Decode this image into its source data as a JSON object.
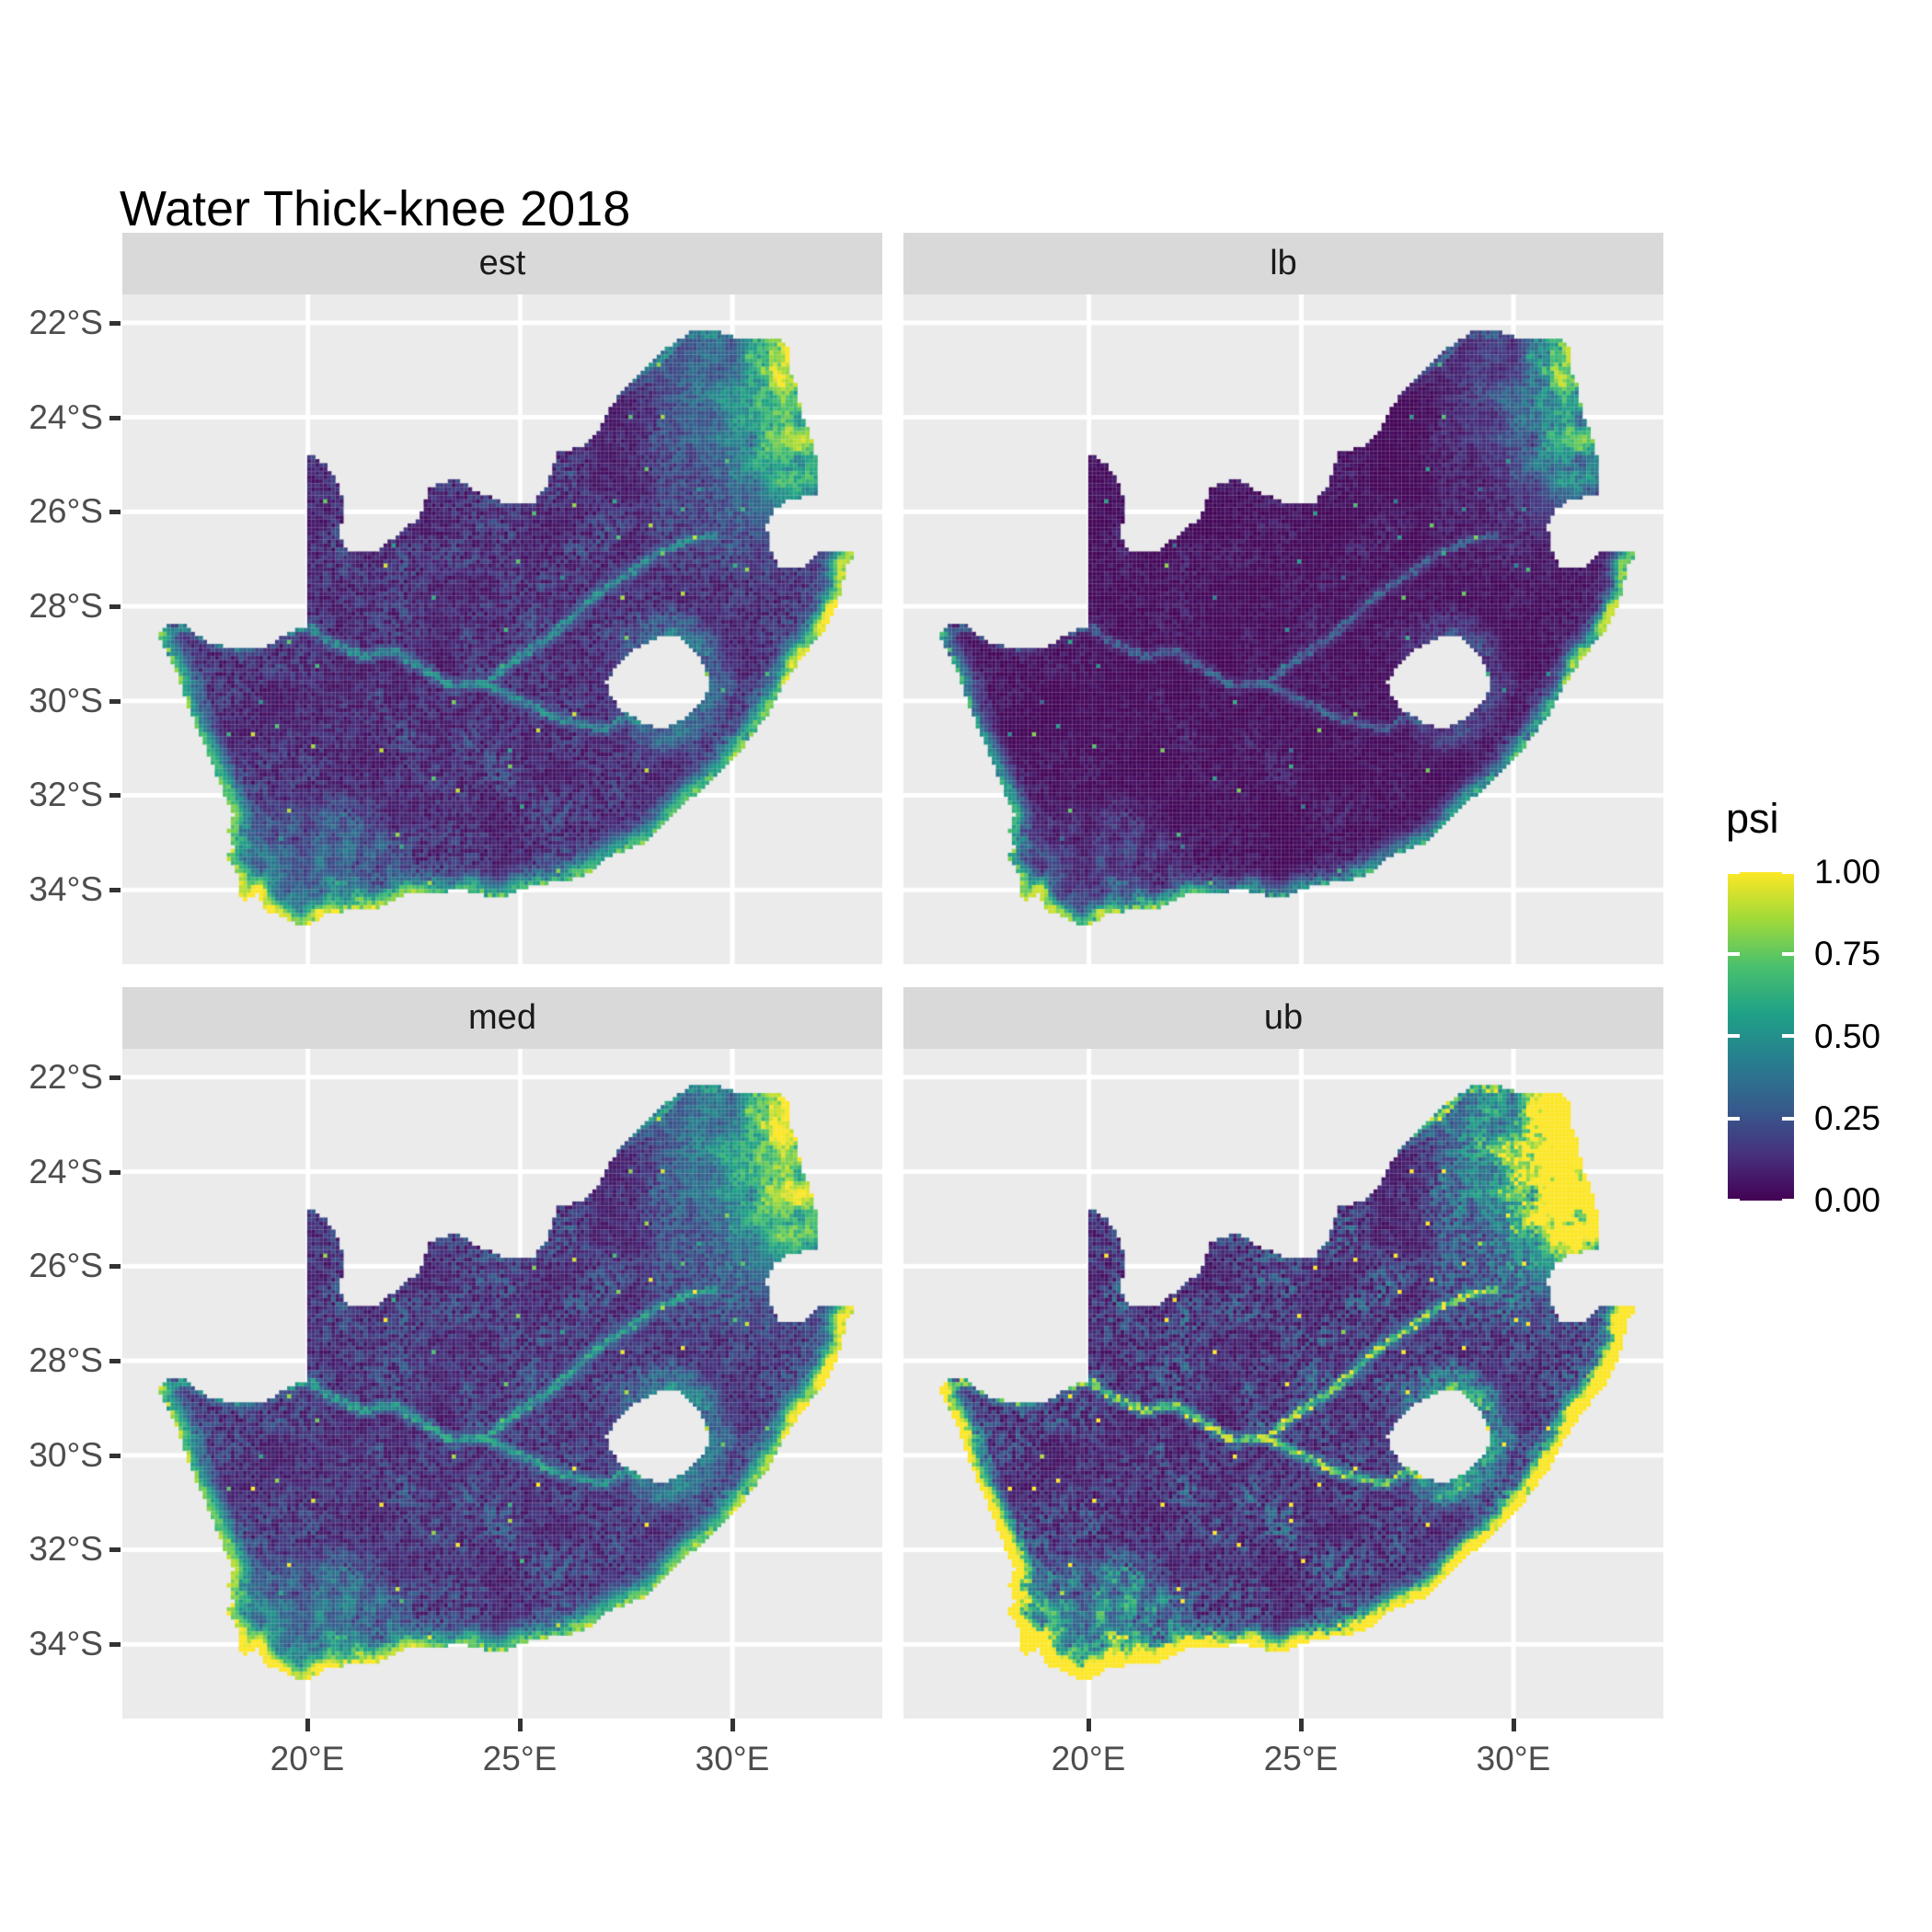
{
  "title": "Water Thick-knee 2018",
  "colors": {
    "background": "#FFFFFF",
    "panel_bg": "#EBEBEB",
    "strip_bg": "#D9D9D9",
    "strip_text": "#1A1A1A",
    "grid": "#FFFFFF",
    "axis_text": "#4D4D4D",
    "tick_mark": "#333333",
    "title_text": "#000000"
  },
  "axes": {
    "x_ticks": [
      "20°E",
      "25°E",
      "30°E"
    ],
    "y_ticks": [
      "22°S",
      "24°S",
      "26°S",
      "28°S",
      "30°S",
      "32°S",
      "34°S"
    ]
  },
  "legend": {
    "title": "psi",
    "tick_labels": [
      "1.00",
      "0.75",
      "0.50",
      "0.25",
      "0.00"
    ]
  },
  "chart_data": {
    "type": "heatmap",
    "subtype": "faceted-raster-occupancy-map",
    "title": "Water Thick-knee 2018",
    "variable": "psi",
    "value_range": [
      0,
      1
    ],
    "region": "South Africa (Lesotho shown as hole, Eswatini notch on east border)",
    "facets": [
      {
        "label": "est",
        "transform": {
          "gain": 1.0,
          "gamma": 1.0,
          "boost": 0
        }
      },
      {
        "label": "lb",
        "transform": {
          "gain": 0.92,
          "gamma": 1.55,
          "boost": 0
        }
      },
      {
        "label": "med",
        "transform": {
          "gain": 1.1,
          "gamma": 0.93,
          "boost": 0
        }
      },
      {
        "label": "ub",
        "transform": {
          "gain": 0.9,
          "gamma": 1.0,
          "boost": 1.5
        }
      }
    ],
    "x_axis": {
      "label": "",
      "ticks_deg_east": [
        20,
        25,
        30
      ],
      "range_deg_east": [
        15.63,
        33.53
      ]
    },
    "y_axis": {
      "label": "",
      "ticks_deg_south": [
        22,
        24,
        26,
        28,
        30,
        32,
        34
      ],
      "range_deg_south": [
        21.4,
        35.57
      ]
    },
    "grid": "major white gridlines on gray panel",
    "legend_position": "right",
    "palette": {
      "name": "viridis",
      "stops": [
        [
          0,
          "#440154"
        ],
        [
          0.143,
          "#46327e"
        ],
        [
          0.286,
          "#365c8d"
        ],
        [
          0.429,
          "#277f8e"
        ],
        [
          0.571,
          "#1fa187"
        ],
        [
          0.714,
          "#4ac16d"
        ],
        [
          0.857,
          "#a0da39"
        ],
        [
          1,
          "#fde725"
        ]
      ]
    },
    "raster_cell_deg": 0.085,
    "coast_band_deg": 0.22,
    "coast_end_index": 41,
    "outline": [
      [
        16.45,
        -28.58
      ],
      [
        16.82,
        -29.2
      ],
      [
        17.05,
        -29.75
      ],
      [
        17.28,
        -30.35
      ],
      [
        17.62,
        -31.05
      ],
      [
        17.95,
        -31.8
      ],
      [
        18.25,
        -32.4
      ],
      [
        18.12,
        -32.78
      ],
      [
        18.27,
        -33.1
      ],
      [
        18.05,
        -33.3
      ],
      [
        18.32,
        -33.6
      ],
      [
        18.36,
        -33.98
      ],
      [
        18.47,
        -34.22
      ],
      [
        18.82,
        -34.08
      ],
      [
        18.97,
        -34.42
      ],
      [
        19.42,
        -34.58
      ],
      [
        19.92,
        -34.78
      ],
      [
        20.4,
        -34.52
      ],
      [
        20.98,
        -34.42
      ],
      [
        21.62,
        -34.42
      ],
      [
        22.28,
        -34.08
      ],
      [
        22.92,
        -34.08
      ],
      [
        23.62,
        -33.98
      ],
      [
        24.52,
        -34.18
      ],
      [
        25.08,
        -33.96
      ],
      [
        25.72,
        -33.85
      ],
      [
        26.48,
        -33.72
      ],
      [
        27.12,
        -33.28
      ],
      [
        27.92,
        -33.0
      ],
      [
        28.62,
        -32.4
      ],
      [
        29.28,
        -31.85
      ],
      [
        29.92,
        -31.3
      ],
      [
        30.42,
        -30.8
      ],
      [
        30.88,
        -30.22
      ],
      [
        31.12,
        -29.78
      ],
      [
        31.48,
        -29.28
      ],
      [
        31.78,
        -28.92
      ],
      [
        32.08,
        -28.6
      ],
      [
        32.38,
        -28.15
      ],
      [
        32.58,
        -27.65
      ],
      [
        32.68,
        -27.15
      ],
      [
        32.89,
        -26.86
      ],
      [
        32.05,
        -26.86
      ],
      [
        31.6,
        -27.22
      ],
      [
        31.1,
        -27.2
      ],
      [
        30.86,
        -26.78
      ],
      [
        30.8,
        -26.28
      ],
      [
        30.97,
        -25.94
      ],
      [
        31.4,
        -25.72
      ],
      [
        31.97,
        -25.66
      ],
      [
        32.02,
        -25.1
      ],
      [
        31.88,
        -24.5
      ],
      [
        31.62,
        -23.92
      ],
      [
        31.52,
        -23.4
      ],
      [
        31.3,
        -22.9
      ],
      [
        31.29,
        -22.4
      ],
      [
        30.8,
        -22.3
      ],
      [
        30.25,
        -22.35
      ],
      [
        29.65,
        -22.18
      ],
      [
        29.02,
        -22.2
      ],
      [
        28.35,
        -22.58
      ],
      [
        27.68,
        -23.22
      ],
      [
        27.2,
        -23.68
      ],
      [
        26.85,
        -24.3
      ],
      [
        26.4,
        -24.64
      ],
      [
        25.88,
        -24.75
      ],
      [
        25.62,
        -25.48
      ],
      [
        25.33,
        -25.78
      ],
      [
        24.68,
        -25.82
      ],
      [
        24.08,
        -25.62
      ],
      [
        23.45,
        -25.28
      ],
      [
        22.86,
        -25.5
      ],
      [
        22.64,
        -26.12
      ],
      [
        22.14,
        -26.45
      ],
      [
        21.6,
        -26.86
      ],
      [
        20.98,
        -26.84
      ],
      [
        20.7,
        -26.48
      ],
      [
        20.86,
        -25.98
      ],
      [
        20.74,
        -25.45
      ],
      [
        20.4,
        -25.0
      ],
      [
        20.0,
        -24.76
      ],
      [
        20.0,
        -28.4
      ],
      [
        19.55,
        -28.55
      ],
      [
        18.95,
        -28.88
      ],
      [
        18.2,
        -28.9
      ],
      [
        17.58,
        -28.74
      ],
      [
        17.06,
        -28.34
      ],
      [
        16.72,
        -28.36
      ]
    ],
    "lesotho_hole": [
      [
        27.02,
        -29.58
      ],
      [
        27.32,
        -29.22
      ],
      [
        27.72,
        -28.9
      ],
      [
        28.22,
        -28.66
      ],
      [
        28.68,
        -28.6
      ],
      [
        29.1,
        -28.92
      ],
      [
        29.36,
        -29.32
      ],
      [
        29.46,
        -29.66
      ],
      [
        29.26,
        -30.06
      ],
      [
        28.86,
        -30.4
      ],
      [
        28.32,
        -30.62
      ],
      [
        27.86,
        -30.46
      ],
      [
        27.4,
        -30.2
      ],
      [
        27.1,
        -29.9
      ]
    ],
    "rivers": [
      [
        [
          16.5,
          -28.58
        ],
        [
          17.2,
          -28.45
        ],
        [
          17.9,
          -28.8
        ],
        [
          18.6,
          -28.88
        ],
        [
          19.3,
          -28.6
        ],
        [
          20.0,
          -28.42
        ],
        [
          20.6,
          -28.8
        ],
        [
          21.3,
          -29.05
        ],
        [
          22.0,
          -28.92
        ],
        [
          22.7,
          -29.32
        ],
        [
          23.4,
          -29.7
        ],
        [
          24.2,
          -29.62
        ],
        [
          24.9,
          -29.96
        ],
        [
          25.6,
          -30.26
        ],
        [
          26.3,
          -30.46
        ],
        [
          27.0,
          -30.6
        ]
      ],
      [
        [
          24.2,
          -29.62
        ],
        [
          24.9,
          -29.12
        ],
        [
          25.6,
          -28.72
        ],
        [
          26.3,
          -28.18
        ],
        [
          26.9,
          -27.68
        ],
        [
          27.6,
          -27.28
        ],
        [
          28.25,
          -26.88
        ],
        [
          28.9,
          -26.62
        ],
        [
          29.6,
          -26.48
        ]
      ],
      [
        [
          27.0,
          -30.6
        ],
        [
          27.52,
          -30.34
        ],
        [
          27.95,
          -30.6
        ]
      ],
      [
        [
          26.9,
          -23.7
        ],
        [
          27.5,
          -23.28
        ],
        [
          28.1,
          -22.92
        ],
        [
          28.9,
          -22.28
        ],
        [
          29.7,
          -22.22
        ],
        [
          30.5,
          -22.35
        ],
        [
          31.25,
          -22.42
        ]
      ]
    ],
    "pattern": "psi near 0 over the arid interior; elevated along south and east coasts, southwestern Cape, Orange/Vaal river lines and the north-eastern lowveld; lb darkest, est and med intermediate, ub brightest with a continuous bright coastal rim."
  }
}
